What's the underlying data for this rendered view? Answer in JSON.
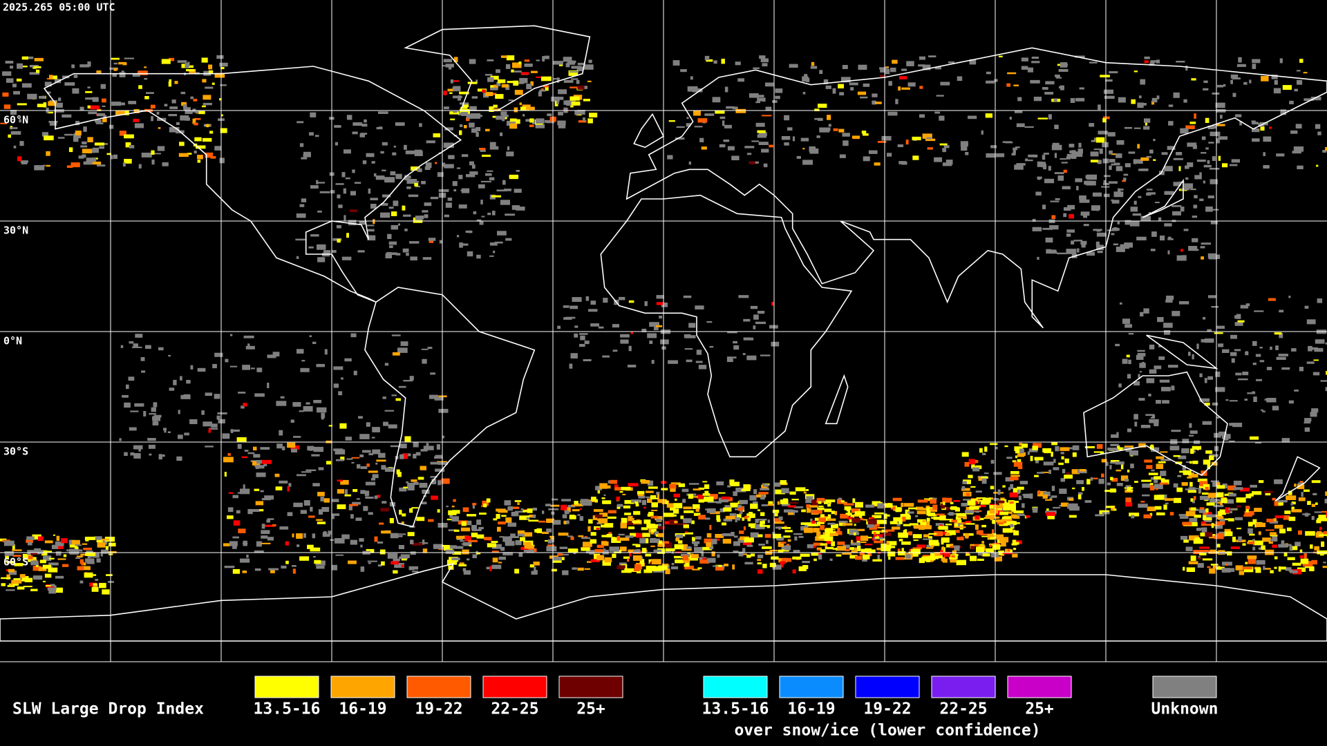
{
  "timestamp": "2025.265 05:00 UTC",
  "latitude_labels": [
    "60°N",
    "30°N",
    "0°N",
    "30°S",
    "60°S"
  ],
  "legend": {
    "title": "SLW Large Drop Index",
    "groups": [
      {
        "items": [
          {
            "label": "13.5-16",
            "color": "#ffff00"
          },
          {
            "label": "16-19",
            "color": "#ffa500"
          },
          {
            "label": "19-22",
            "color": "#ff5a00"
          },
          {
            "label": "22-25",
            "color": "#ff0000"
          },
          {
            "label": "25+",
            "color": "#6e0000"
          }
        ]
      },
      {
        "items": [
          {
            "label": "13.5-16",
            "color": "#00ffff"
          },
          {
            "label": "16-19",
            "color": "#0a8cff"
          },
          {
            "label": "19-22",
            "color": "#0000ff"
          },
          {
            "label": "22-25",
            "color": "#7a1ef0"
          },
          {
            "label": "25+",
            "color": "#c800c8"
          }
        ],
        "caption": "over snow/ice (lower confidence)"
      },
      {
        "items": [
          {
            "label": "Unknown",
            "color": "#808080"
          }
        ]
      }
    ]
  }
}
